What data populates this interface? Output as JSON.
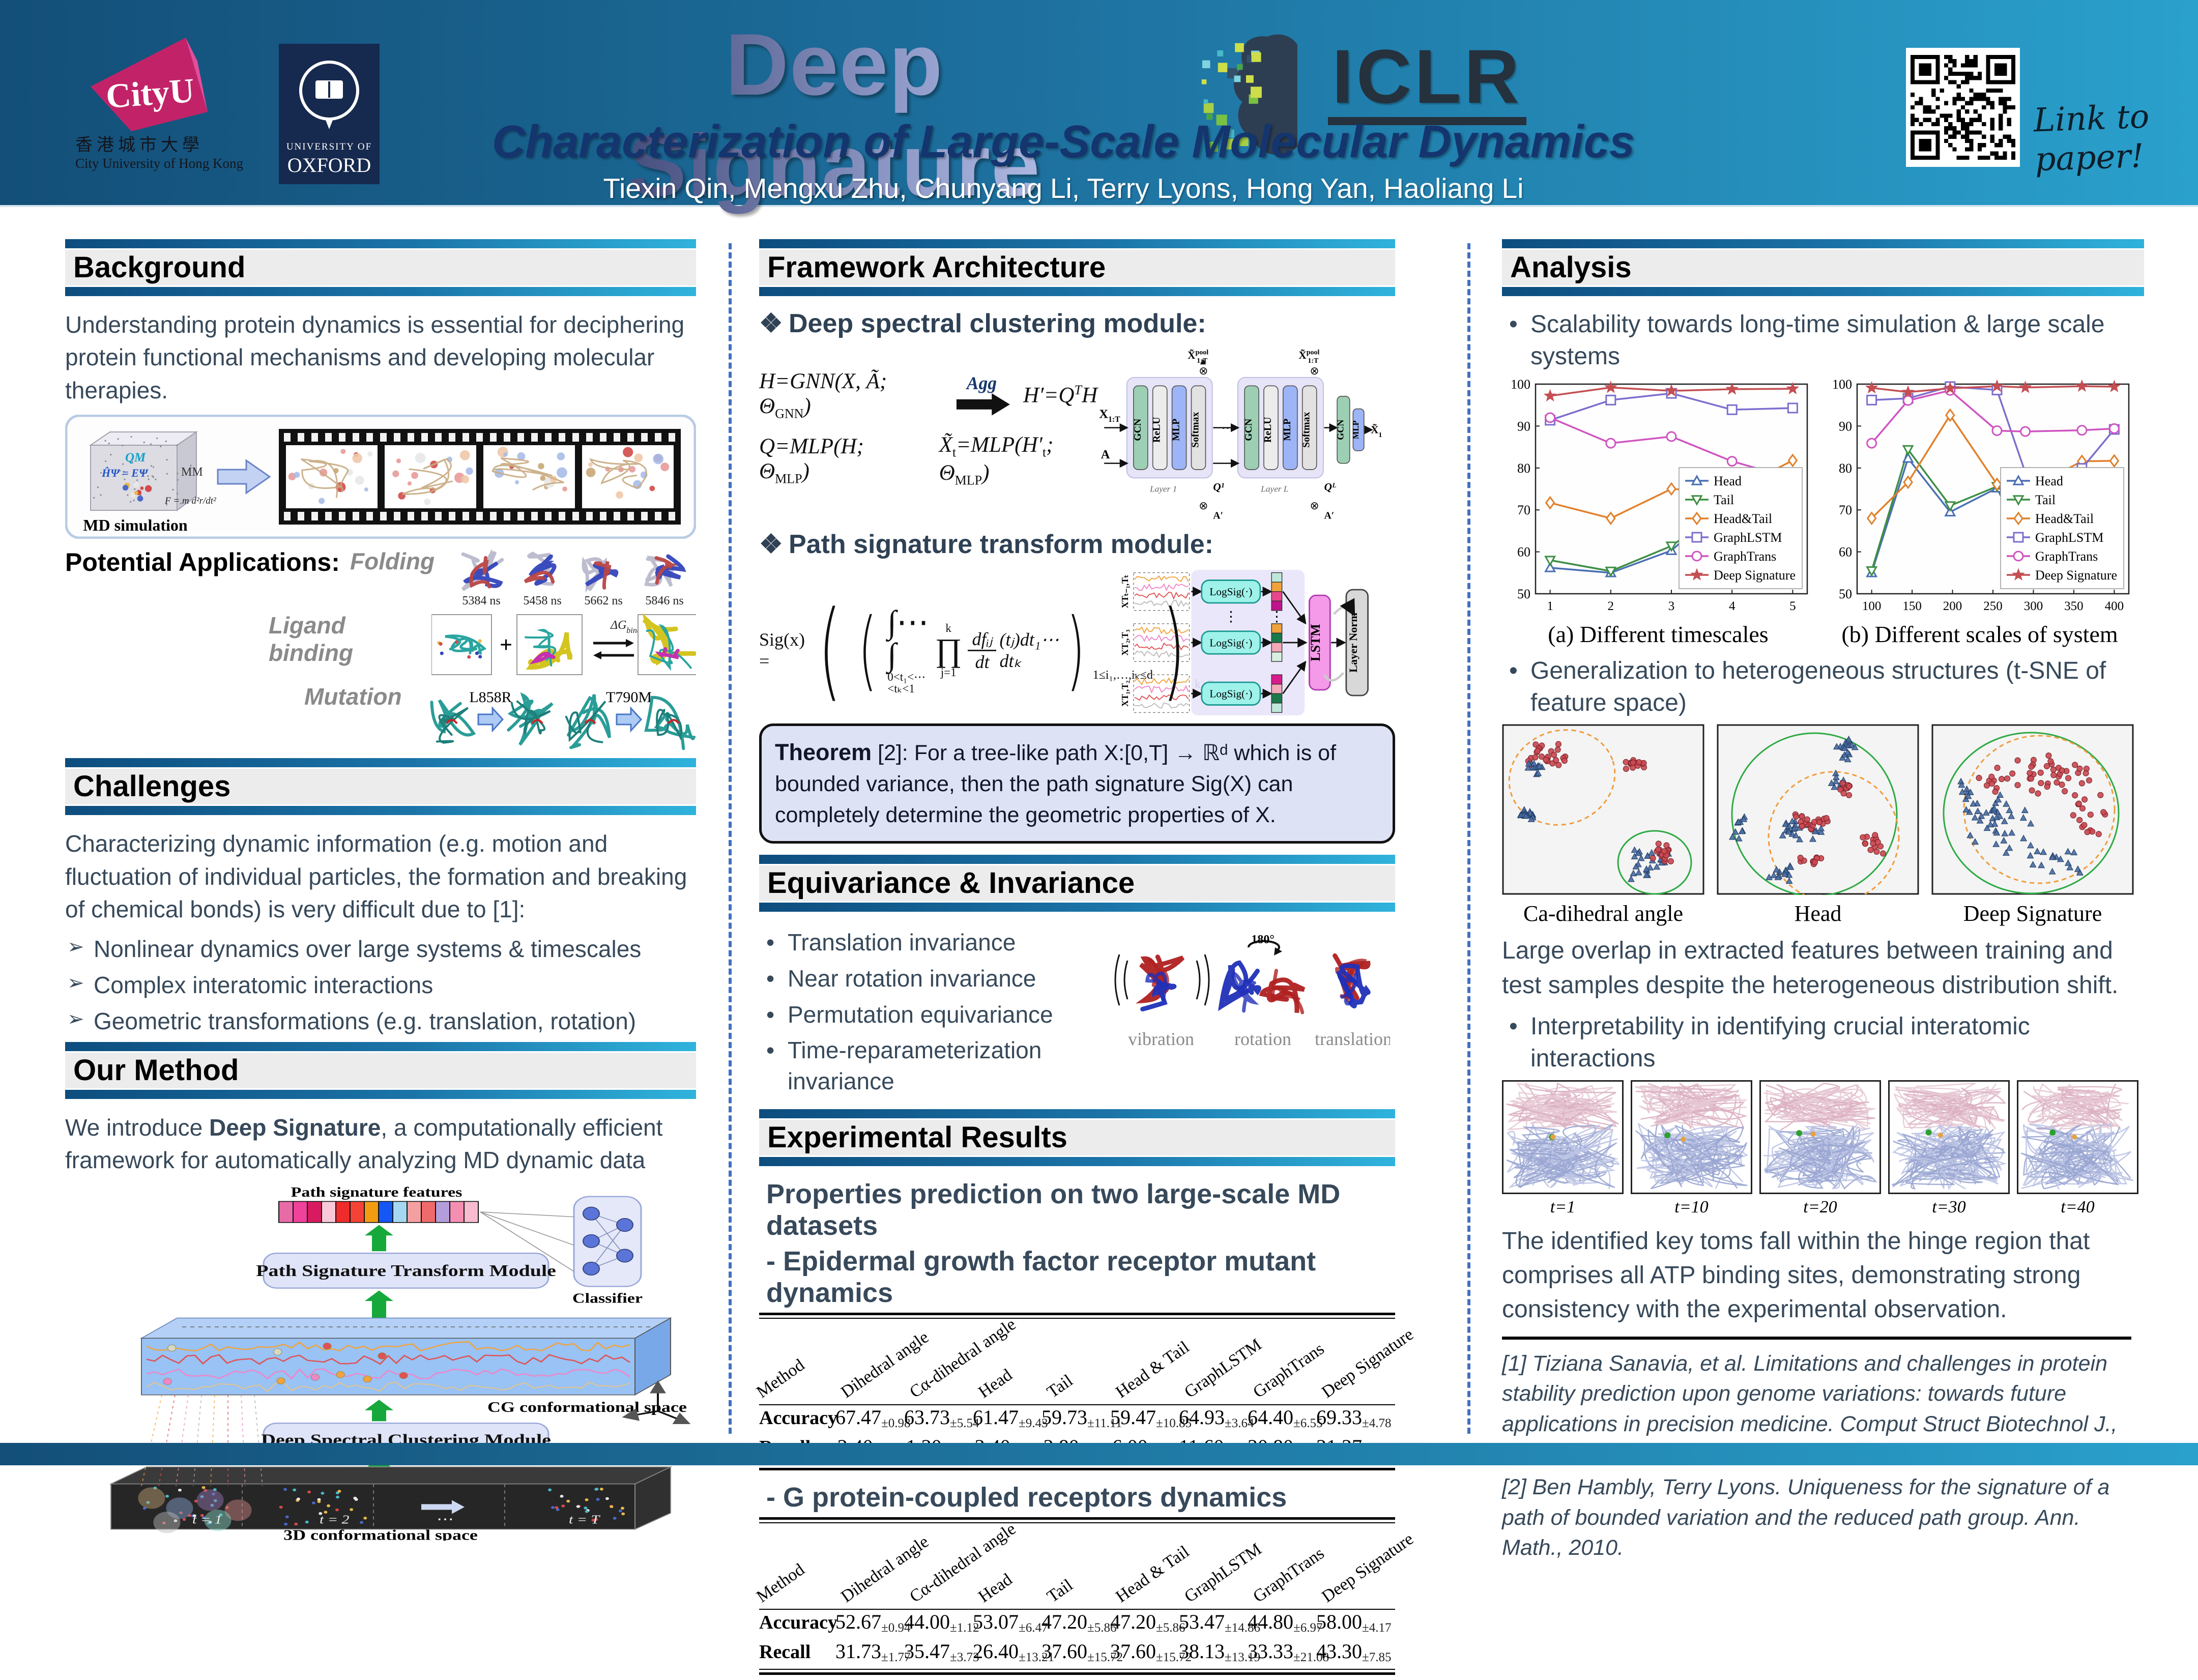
{
  "header": {
    "title": "Deep Signature",
    "subtitle": "Characterization of Large-Scale Molecular Dynamics",
    "authors": "Tiexin Qin, Mengxu Zhu, Chunyang Li, Terry Lyons, Hong Yan, Haoliang Li",
    "conference": "ICLR",
    "qr_caption_line1": "Link to",
    "qr_caption_line2": "paper!",
    "logos": {
      "cityu_name": "CityU",
      "cityu_chinese": "香港城市大學",
      "cityu_full": "City University of Hong Kong",
      "oxford_line1": "UNIVERSITY OF",
      "oxford_line2": "OXFORD"
    }
  },
  "left": {
    "background": {
      "title": "Background",
      "paragraph": "Understanding protein dynamics is essential for deciphering protein functional mechanisms and developing molecular therapies.",
      "md_figure": {
        "qm_label": "QM",
        "qm_eq": "ĤΨ = EΨ",
        "mm_label": "MM",
        "mm_eq": "F = m d²r/dt²",
        "caption": "MD simulation"
      },
      "applications": {
        "label": "Potential  Applications:",
        "folding": {
          "name": "Folding",
          "frames": [
            "5384 ns",
            "5458 ns",
            "5662 ns",
            "5846 ns"
          ]
        },
        "ligand": {
          "name": "Ligand binding",
          "plus": "+",
          "dg": "ΔG",
          "dg_sub": "binding, gas"
        },
        "mutation": {
          "name": "Mutation",
          "labels": [
            "L858R",
            "T790M"
          ]
        }
      }
    },
    "challenges": {
      "title": "Challenges",
      "paragraph": "Characterizing dynamic information (e.g. motion and fluctuation of individual particles, the formation and breaking of chemical bonds) is very difficult due to [1]:",
      "bullets": [
        "Nonlinear dynamics over large systems & timescales",
        "Complex interatomic interactions",
        "Geometric transformations (e.g. translation, rotation)"
      ]
    },
    "method": {
      "title": "Our Method",
      "intro_prefix": "We introduce ",
      "intro_bold": "Deep Signature",
      "intro_suffix": ", a computationally efficient framework for automatically analyzing MD dynamic data",
      "diagram": {
        "features": "Path signature features",
        "transform": "Path Signature Transform Module",
        "classifier": "Classifier",
        "cg": "CG conformational space",
        "clustering": "Deep Spectral Clustering Module",
        "t1": "t = 1",
        "t2": "t = 2",
        "dots": "⋯",
        "tT": "t = T",
        "space3d": "3D conformational space"
      }
    }
  },
  "middle": {
    "framework": {
      "title": "Framework Architecture",
      "module1": "Deep spectral clustering module:",
      "module2": "Path signature transform module:",
      "formulas": {
        "f1_pre": "H=GNN(X, Ã; Θ",
        "f1_sub": "GNN",
        "f1_post": ")",
        "agg": "Agg",
        "f2_pre": "H′=Q",
        "f2_sup": "T",
        "f2_post": "H",
        "f3_pre": "Q=MLP(H; Θ",
        "f3_sub": "MLP",
        "f3_post": ")",
        "f4_p1": "X̃",
        "f4_s1": "t",
        "f4_p2": "=MLP(H′",
        "f4_s2": "t",
        "f4_p3": "; Θ",
        "f4_s3": "MLP",
        "f4_p4": ")"
      },
      "gnn": {
        "x_in": "X",
        "x_in_sub": "1:T",
        "a_in": "A",
        "blocks": [
          "GCN",
          "ReLU",
          "MLP",
          "Softmax"
        ],
        "q_first": "Q¹",
        "q_last": "Qᴸ",
        "layer_first": "Layer 1",
        "layer_last": "Layer L",
        "a_out": "A′",
        "pool_base": "X̃",
        "pool_sup": "pool",
        "pool_sub": "1:T",
        "final_blocks": [
          "GCN",
          "MLP"
        ],
        "out_base": "X̃",
        "out_sub": "1:T"
      },
      "sig": {
        "lhs": "Sig(x) =",
        "integral": "∫⋯∫",
        "int_sub": "0<t₁<⋯<tₖ<1",
        "prod": "∏",
        "prod_sup": "k",
        "prod_sub": "j=1",
        "num": "dfᵢⱼ",
        "den": "dt",
        "tail": "(tⱼ)dt₁⋯dtₖ",
        "outer_sub1": "1≤i₁,…,iₖ≤d",
        "outer_sub2": "k≥0"
      },
      "pathsig": {
        "wave_labels": [
          "XTₜ₋₁,Tₜ",
          "XT₂,T₃",
          "XT₁,T₂"
        ],
        "logsig": "LogSig(·)",
        "lstm": "LSTM",
        "layernorm": "Layer Norm"
      },
      "theorem_word": "Theorem",
      "theorem_rest": " [2]: For a tree-like path X:[0,T] → ℝᵈ which is of bounded variance, then the path signature Sig(X) can completely determine the geometric properties of X."
    },
    "equivariance": {
      "title": "Equivariance & Invariance",
      "bullets": [
        "Translation invariance",
        "Near rotation invariance",
        "Permutation equivariance",
        "Time-reparameterization invariance"
      ],
      "figure_labels": [
        "vibration",
        "rotation",
        "translation"
      ],
      "rotation_angle": "180°"
    },
    "results": {
      "title": "Experimental Results",
      "heading": "Properties prediction on two large-scale MD datasets",
      "dataset1": "- Epidermal growth factor receptor mutant dynamics",
      "dataset2": "- G protein-coupled receptors dynamics",
      "columns": [
        "Method",
        "Dihedral angle",
        "Cα-dihedral angle",
        "Head",
        "Tail",
        "Head & Tail",
        "GraphLSTM",
        "GraphTrans",
        "Deep Signature"
      ],
      "table1": {
        "rows": [
          {
            "label": "Accuracy",
            "values": [
              "67.47",
              "63.73",
              "61.47",
              "59.73",
              "59.47",
              "64.93",
              "64.40",
              "69.33"
            ],
            "errors": [
              "±0.98",
              "±5.54",
              "±9.43",
              "±11.11",
              "±10.85",
              "±3.64",
              "±6.55",
              "±4.78"
            ]
          },
          {
            "label": "Recall",
            "values": [
              "2.40",
              "1.20",
              "2.40",
              "2.80",
              "6.00",
              "11.60",
              "20.80",
              "21.27"
            ],
            "errors": [
              "±2.94",
              "±2.40",
              "±4.80",
              "±5.60",
              "±7.38",
              "±8.52",
              "±10.47",
              "±8.26"
            ]
          }
        ]
      },
      "table2": {
        "rows": [
          {
            "label": "Accuracy",
            "values": [
              "52.67",
              "44.00",
              "53.07",
              "47.20",
              "47.20",
              "53.47",
              "44.80",
              "58.00"
            ],
            "errors": [
              "±0.94",
              "±1.12",
              "±6.47",
              "±5.86",
              "±5.86",
              "±14.86",
              "±6.97",
              "±4.17"
            ]
          },
          {
            "label": "Recall",
            "values": [
              "31.73",
              "35.47",
              "26.40",
              "37.60",
              "37.60",
              "38.13",
              "33.33",
              "43.30"
            ],
            "errors": [
              "±1.77",
              "±3.73",
              "±13.21",
              "±15.72",
              "±15.72",
              "±13.19",
              "±21.08",
              "±7.85"
            ]
          }
        ]
      }
    }
  },
  "right": {
    "title": "Analysis",
    "bullet1": "Scalability towards long-time simulation & large scale systems",
    "bullet2": "Generalization to heterogeneous structures (t-SNE of feature space)",
    "bullet3": "Interpretability in identifying crucial interatomic interactions",
    "tsne_labels": [
      "Ca-dihedral angle",
      "Head",
      "Deep Signature"
    ],
    "tsne_caption": "Large overlap in extracted features between training and test samples despite the heterogeneous distribution shift.",
    "frames": [
      "t=1",
      "t=10",
      "t=20",
      "t=30",
      "t=40"
    ],
    "interp_caption": "The identified key toms fall within the hinge region that comprises all ATP binding sites, demonstrating strong consistency with the experimental observation.",
    "references": [
      "[1] Tiziana Sanavia, et al. Limitations and challenges in protein stability prediction upon genome variations: towards future applications in precision medicine. Comput Struct Biotechnol J., 2020.",
      "[2] Ben Hambly, Terry Lyons. Uniqueness for the signature of a path of bounded variation and the reduced path group. Ann. Math., 2010."
    ]
  },
  "chart_data": [
    {
      "type": "line",
      "title": "(a) Different timescales",
      "x": [
        1,
        2,
        3,
        4,
        5
      ],
      "xticks": [
        1,
        2,
        3,
        4,
        5
      ],
      "ylim": [
        50,
        100
      ],
      "yticks": [
        50,
        60,
        70,
        80,
        90,
        100
      ],
      "grid": false,
      "legend_position": "lower right",
      "series": [
        {
          "name": "Head",
          "color": "#4a6fb3",
          "marker": "triangle-up",
          "values": [
            56.2,
            55.0,
            60.3,
            73.0,
            67.3
          ]
        },
        {
          "name": "Tail",
          "color": "#3d8f44",
          "marker": "triangle-down",
          "values": [
            58.0,
            55.4,
            61.4,
            71.6,
            68.8
          ]
        },
        {
          "name": "Head&Tail",
          "color": "#e1812c",
          "marker": "diamond",
          "values": [
            71.7,
            68.0,
            75.0,
            74.3,
            81.8
          ]
        },
        {
          "name": "GraphLSTM",
          "color": "#7b6fce",
          "marker": "square",
          "values": [
            91.4,
            96.2,
            97.8,
            93.9,
            94.3
          ]
        },
        {
          "name": "GraphTrans",
          "color": "#cf54c0",
          "marker": "circle",
          "values": [
            92.0,
            85.9,
            87.5,
            81.6,
            77.5
          ]
        },
        {
          "name": "Deep Signature",
          "color": "#c44e52",
          "marker": "star",
          "values": [
            97.2,
            99.2,
            98.4,
            98.8,
            98.9
          ]
        }
      ]
    },
    {
      "type": "line",
      "title": "(b) Different scales of system",
      "x": [
        100,
        145,
        197,
        255,
        290,
        360,
        400
      ],
      "xticks": [
        100,
        150,
        200,
        250,
        300,
        350,
        400
      ],
      "ylim": [
        50,
        100
      ],
      "yticks": [
        50,
        60,
        70,
        80,
        90,
        100
      ],
      "grid": false,
      "legend_position": "lower right",
      "series": [
        {
          "name": "Head",
          "color": "#4a6fb3",
          "marker": "triangle-up",
          "values": [
            55.0,
            82.3,
            69.5,
            75.2,
            61.4,
            72.4,
            74.6
          ]
        },
        {
          "name": "Tail",
          "color": "#3d8f44",
          "marker": "triangle-down",
          "values": [
            55.5,
            84.4,
            71.0,
            75.6,
            63.9,
            73.6,
            75.9
          ]
        },
        {
          "name": "Head&Tail",
          "color": "#e1812c",
          "marker": "diamond",
          "values": [
            68.0,
            76.6,
            92.6,
            76.1,
            74.6,
            81.6,
            81.7
          ]
        },
        {
          "name": "GraphLSTM",
          "color": "#7b6fce",
          "marker": "square",
          "values": [
            96.2,
            96.6,
            99.4,
            98.6,
            78.9,
            79.9,
            89.2
          ]
        },
        {
          "name": "GraphTrans",
          "color": "#cf54c0",
          "marker": "circle",
          "values": [
            85.9,
            96.1,
            98.5,
            88.9,
            88.7,
            89.0,
            89.4
          ]
        },
        {
          "name": "Deep Signature",
          "color": "#c44e52",
          "marker": "star",
          "values": [
            99.1,
            98.1,
            99.0,
            99.5,
            99.2,
            99.5,
            99.4
          ]
        }
      ]
    }
  ]
}
